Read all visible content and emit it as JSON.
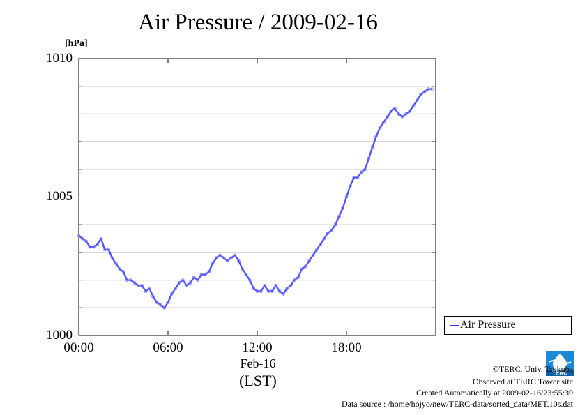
{
  "title": "Air Pressure / 2009-02-16",
  "unit": "[hPa]",
  "y_ticks": [
    "1000",
    "1005",
    "1010"
  ],
  "x_ticks": [
    "00:00",
    "06:00",
    "12:00",
    "18:00"
  ],
  "date_label": "Feb-16",
  "timezone_label": "(LST)",
  "legend": {
    "label": "Air Pressure",
    "color": "#3333ff"
  },
  "credits": {
    "copyright": "©TERC, Univ. Tsukuba",
    "observed": "Observed at TERC Tower site",
    "created": "Created Automatically at 2009-02-16/23:55:39",
    "source": "Data source : /home/hojyo/new/TERC-data/sorted_data/MET.10s.dat"
  },
  "logo_text": "TERC",
  "chart_data": {
    "type": "line",
    "title": "Air Pressure / 2009-02-16",
    "xlabel": "Feb-16 (LST)",
    "ylabel": "[hPa]",
    "xlim": [
      0,
      24
    ],
    "ylim": [
      1000,
      1010
    ],
    "x_tick_values": [
      0,
      6,
      12,
      18
    ],
    "y_tick_values": [
      1000,
      1005,
      1010
    ],
    "y_minor_step": 1,
    "grid": true,
    "legend_position": "bottom-right outside",
    "series": [
      {
        "name": "Air Pressure",
        "color": "#3333ff",
        "x": [
          0.0,
          0.25,
          0.5,
          0.75,
          1.0,
          1.25,
          1.5,
          1.75,
          2.0,
          2.25,
          2.5,
          2.75,
          3.0,
          3.25,
          3.5,
          3.75,
          4.0,
          4.25,
          4.5,
          4.75,
          5.0,
          5.25,
          5.5,
          5.75,
          6.0,
          6.25,
          6.5,
          6.75,
          7.0,
          7.25,
          7.5,
          7.75,
          8.0,
          8.25,
          8.5,
          8.75,
          9.0,
          9.25,
          9.5,
          9.75,
          10.0,
          10.25,
          10.5,
          10.75,
          11.0,
          11.25,
          11.5,
          11.75,
          12.0,
          12.25,
          12.5,
          12.75,
          13.0,
          13.25,
          13.5,
          13.75,
          14.0,
          14.25,
          14.5,
          14.75,
          15.0,
          15.25,
          15.5,
          15.75,
          16.0,
          16.25,
          16.5,
          16.75,
          17.0,
          17.25,
          17.5,
          17.75,
          18.0,
          18.25,
          18.5,
          18.75,
          19.0,
          19.25,
          19.5,
          19.75,
          20.0,
          20.25,
          20.5,
          20.75,
          21.0,
          21.25,
          21.5,
          21.75,
          22.0,
          22.25,
          22.5,
          22.75,
          23.0,
          23.25,
          23.5,
          23.75
        ],
        "y": [
          1003.6,
          1003.5,
          1003.4,
          1003.2,
          1003.2,
          1003.3,
          1003.5,
          1003.1,
          1003.1,
          1002.8,
          1002.6,
          1002.4,
          1002.3,
          1002.0,
          1002.0,
          1001.9,
          1001.8,
          1001.8,
          1001.6,
          1001.7,
          1001.4,
          1001.2,
          1001.1,
          1001.0,
          1001.2,
          1001.5,
          1001.7,
          1001.9,
          1002.0,
          1001.8,
          1001.9,
          1002.1,
          1002.0,
          1002.2,
          1002.2,
          1002.3,
          1002.6,
          1002.8,
          1002.9,
          1002.8,
          1002.7,
          1002.8,
          1002.9,
          1002.7,
          1002.4,
          1002.2,
          1002.0,
          1001.7,
          1001.6,
          1001.6,
          1001.8,
          1001.6,
          1001.6,
          1001.8,
          1001.6,
          1001.5,
          1001.7,
          1001.8,
          1002.0,
          1002.1,
          1002.4,
          1002.5,
          1002.7,
          1002.9,
          1003.1,
          1003.3,
          1003.5,
          1003.7,
          1003.8,
          1004.0,
          1004.3,
          1004.6,
          1005.0,
          1005.4,
          1005.7,
          1005.7,
          1005.9,
          1006.0,
          1006.4,
          1006.8,
          1007.2,
          1007.5,
          1007.7,
          1007.9,
          1008.1,
          1008.2,
          1008.0,
          1007.9,
          1008.0,
          1008.1,
          1008.3,
          1008.5,
          1008.7,
          1008.8,
          1008.9,
          1008.9
        ]
      }
    ]
  }
}
